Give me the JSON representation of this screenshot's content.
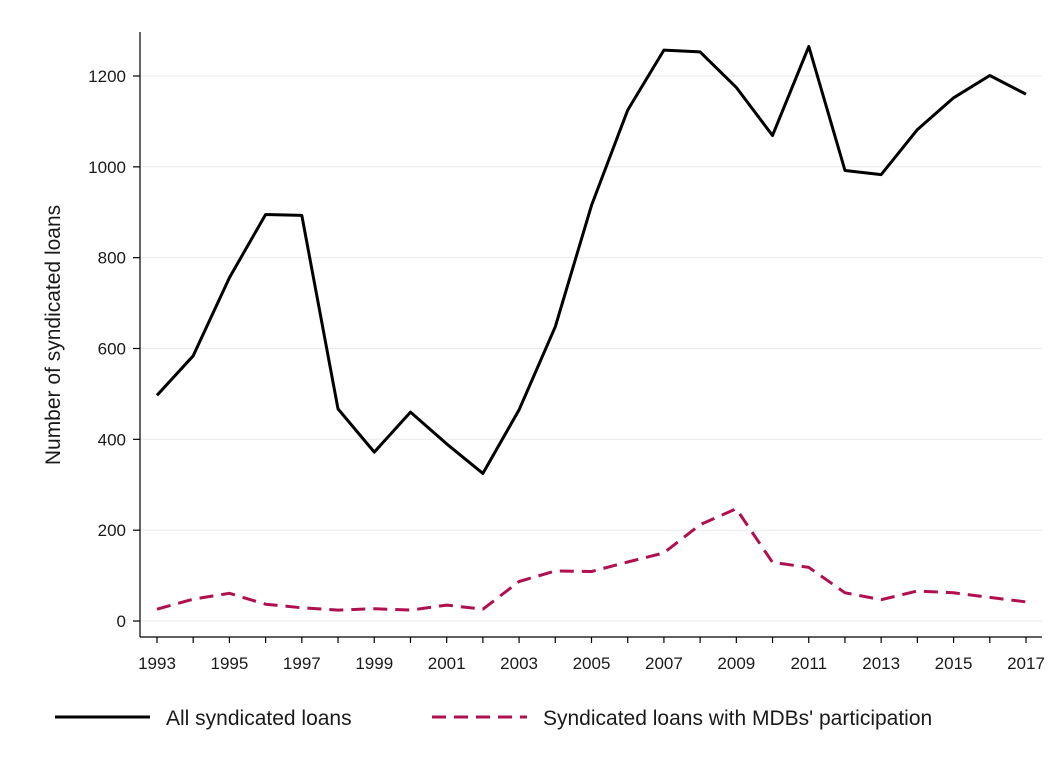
{
  "chart_data": {
    "type": "line",
    "title": "",
    "xlabel": "",
    "ylabel": "Number of syndicated loans",
    "xlim": [
      1993,
      2017
    ],
    "ylim": [
      0,
      1300
    ],
    "x_ticks": [
      "1993",
      "1995",
      "1997",
      "1999",
      "2001",
      "2003",
      "2005",
      "2007",
      "2009",
      "2011",
      "2013",
      "2015",
      "2017"
    ],
    "y_ticks": [
      "0",
      "200",
      "400",
      "600",
      "800",
      "1000",
      "1200"
    ],
    "grid": "horizontal",
    "legend_position": "bottom",
    "x": [
      1993,
      1994,
      1995,
      1996,
      1997,
      1998,
      1999,
      2000,
      2001,
      2002,
      2003,
      2004,
      2005,
      2006,
      2007,
      2008,
      2009,
      2010,
      2011,
      2012,
      2013,
      2014,
      2015,
      2016,
      2017
    ],
    "series": [
      {
        "name": "All syndicated loans",
        "color": "#000000",
        "style": "solid",
        "values": [
          497,
          584,
          756,
          895,
          893,
          467,
          372,
          460,
          390,
          325,
          465,
          648,
          915,
          1125,
          1257,
          1253,
          1175,
          1069,
          1265,
          992,
          983,
          1082,
          1152,
          1201,
          1160
        ]
      },
      {
        "name": "Syndicated loans with MDBs' participation",
        "color": "#b0104f",
        "style": "dashed",
        "values": [
          26,
          48,
          61,
          37,
          29,
          24,
          27,
          24,
          35,
          26,
          87,
          110,
          109,
          130,
          150,
          212,
          247,
          129,
          118,
          62,
          47,
          66,
          62,
          52,
          42
        ]
      }
    ]
  }
}
